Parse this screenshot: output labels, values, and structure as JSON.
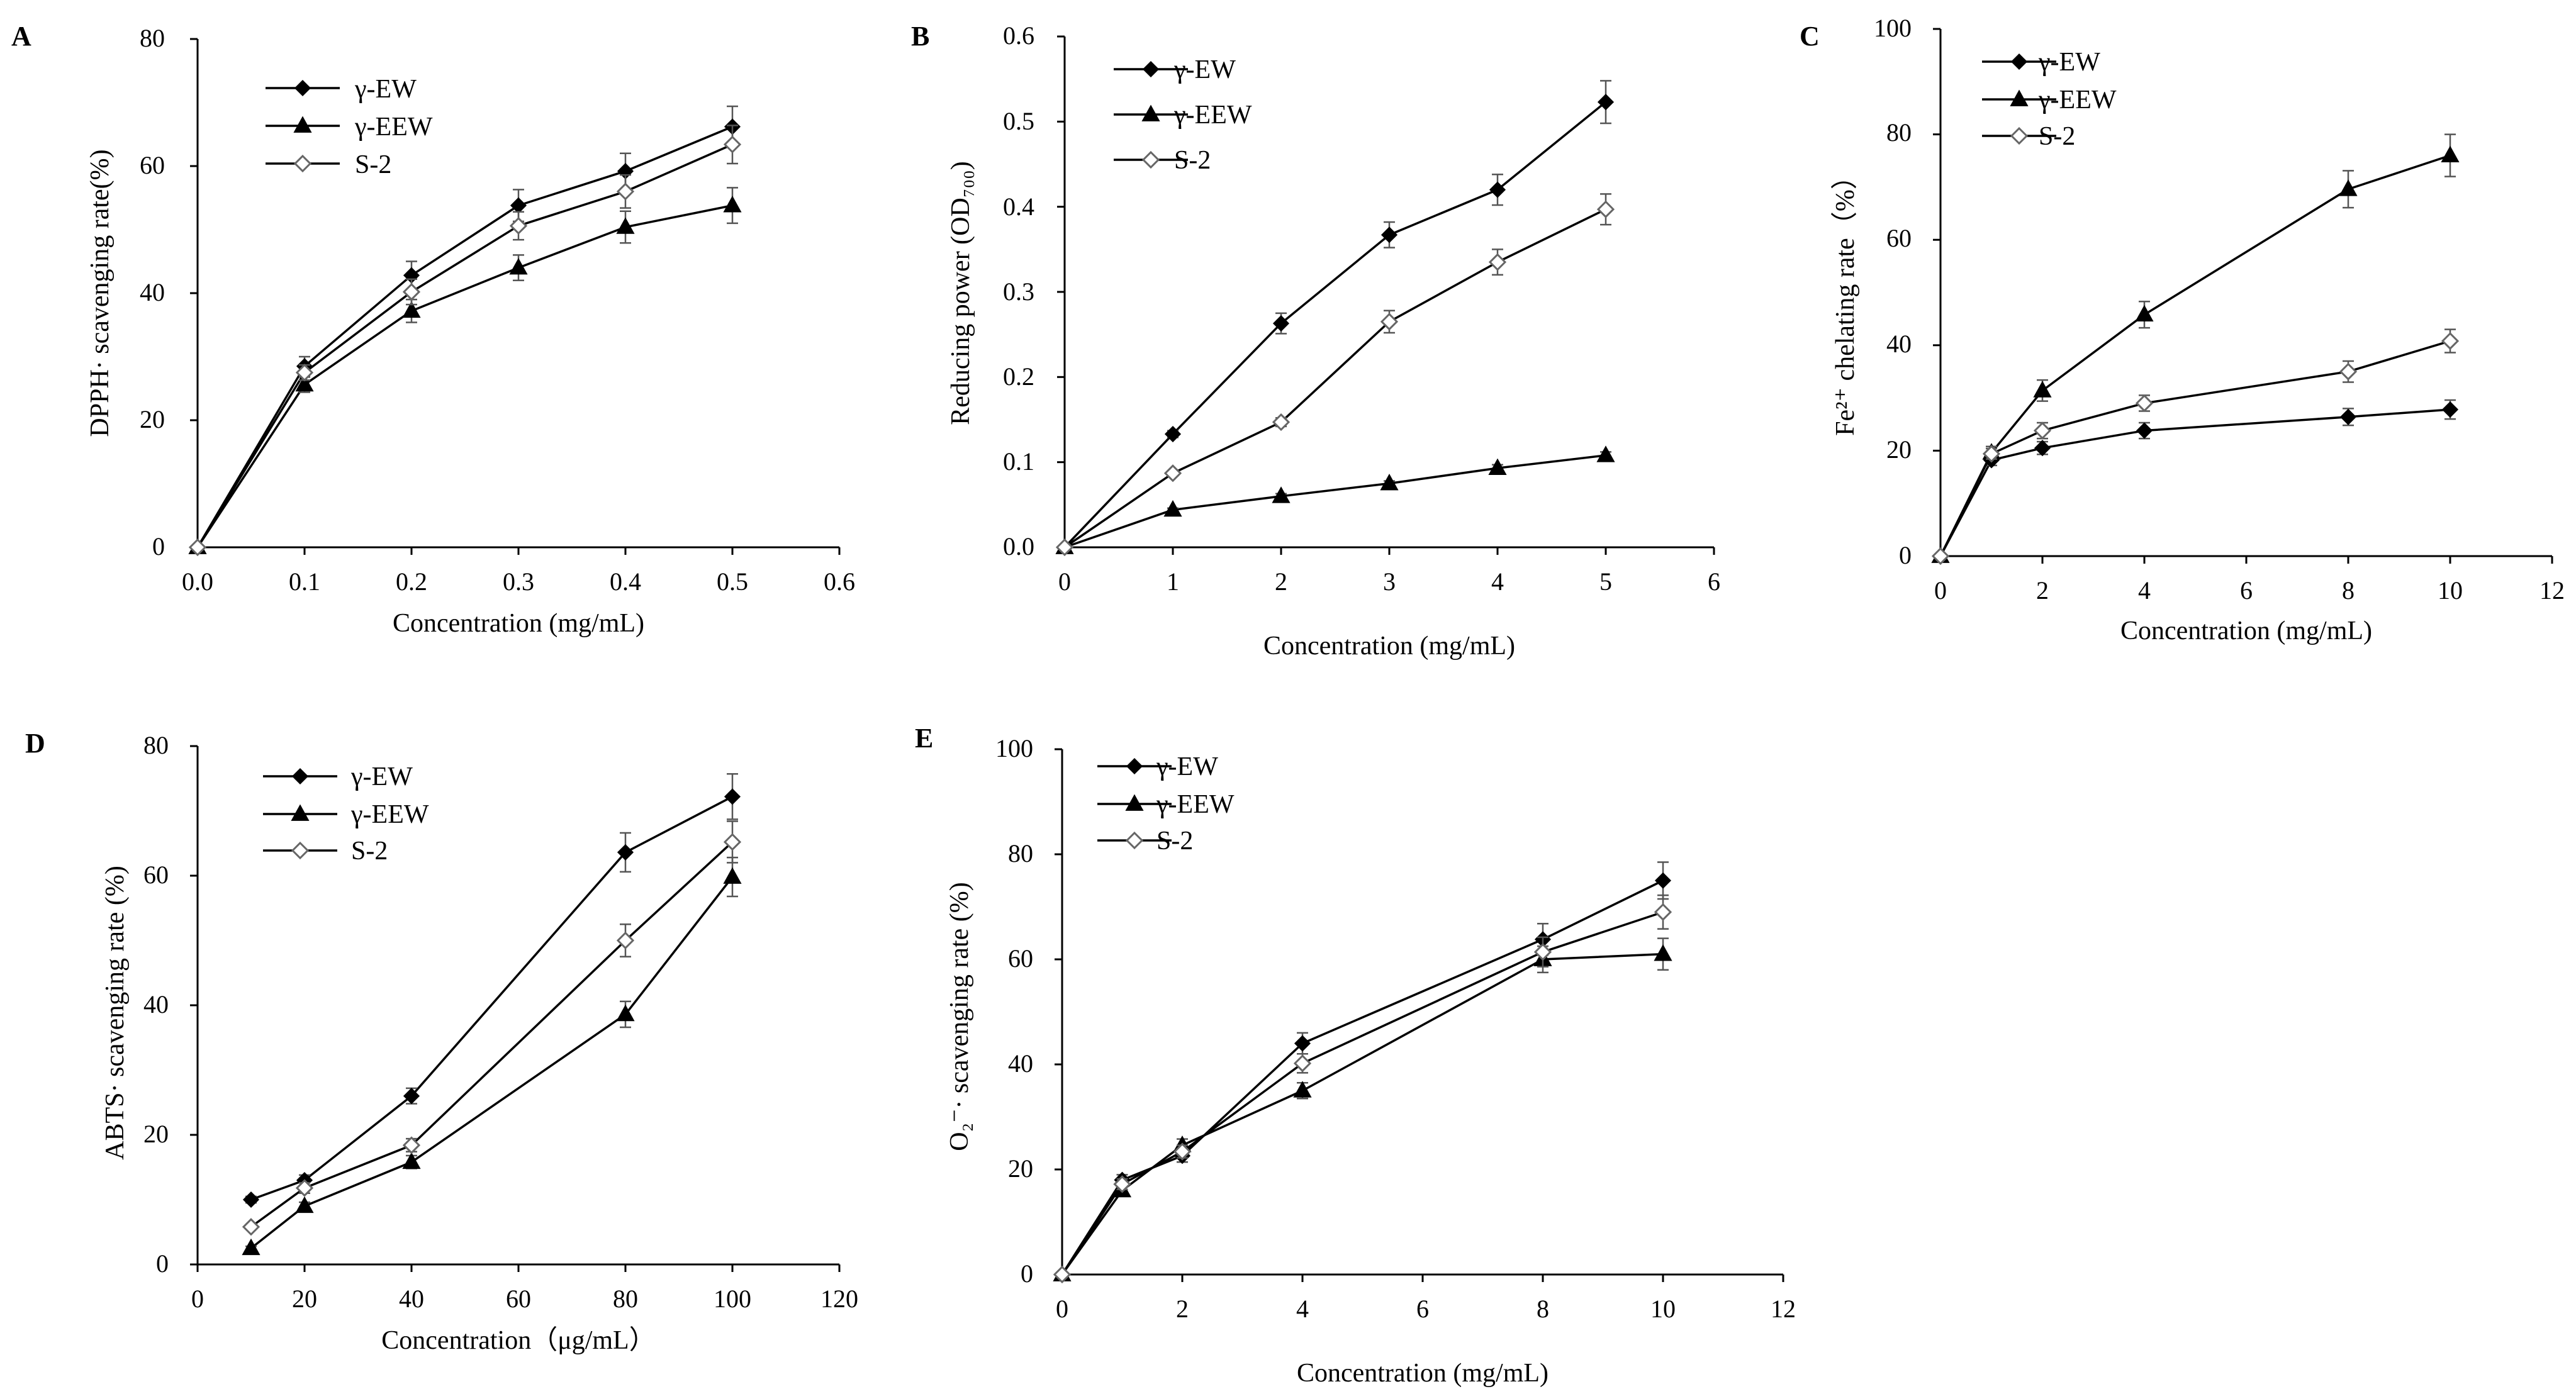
{
  "chart_data": [
    {
      "panel": "A",
      "type": "line",
      "xlabel": "Concentration (mg/mL)",
      "ylabel": "DPPH· scavenging rate(%)",
      "xlim": [
        0,
        0.6
      ],
      "xticks": [
        0,
        0.1,
        0.2,
        0.3,
        0.4,
        0.5,
        0.6
      ],
      "xtick_labels": [
        "0.0",
        "0.1",
        "0.2",
        "0.3",
        "0.4",
        "0.5",
        "0.6"
      ],
      "ylim": [
        0,
        80
      ],
      "yticks": [
        0,
        20,
        40,
        60,
        80
      ],
      "ytick_labels": [
        "0",
        "20",
        "40",
        "60",
        "80"
      ],
      "legend": "top-left",
      "series": [
        {
          "name": "γ-EW",
          "marker": "diamond",
          "x": [
            0,
            0.1,
            0.2,
            0.3,
            0.4,
            0.5
          ],
          "y": [
            0,
            28.5,
            42.8,
            53.8,
            59.2,
            66.2
          ],
          "err": [
            0,
            1.5,
            2.2,
            2.5,
            2.8,
            3.2
          ]
        },
        {
          "name": "γ-EEW",
          "marker": "triangle",
          "x": [
            0,
            0.1,
            0.2,
            0.3,
            0.4,
            0.5
          ],
          "y": [
            0,
            25.6,
            37.2,
            44.0,
            50.4,
            53.8
          ],
          "err": [
            0,
            1.2,
            1.8,
            2.0,
            2.5,
            2.8
          ]
        },
        {
          "name": "S-2",
          "marker": "open-diamond",
          "x": [
            0,
            0.1,
            0.2,
            0.3,
            0.4,
            0.5
          ],
          "y": [
            0,
            27.5,
            40.2,
            50.6,
            56.0,
            63.4
          ],
          "err": [
            0,
            1.2,
            2.0,
            2.2,
            2.6,
            3.0
          ]
        }
      ]
    },
    {
      "panel": "B",
      "type": "line",
      "xlabel": "Concentration (mg/mL)",
      "ylabel": "Reducing power (OD₇₀₀)",
      "xlim": [
        0,
        6
      ],
      "xticks": [
        0,
        1,
        2,
        3,
        4,
        5,
        6
      ],
      "xtick_labels": [
        "0",
        "1",
        "2",
        "3",
        "4",
        "5",
        "6"
      ],
      "ylim": [
        0,
        0.6
      ],
      "yticks": [
        0,
        0.1,
        0.2,
        0.3,
        0.4,
        0.5,
        0.6
      ],
      "ytick_labels": [
        "0.0",
        "0.1",
        "0.2",
        "0.3",
        "0.4",
        "0.5",
        "0.6"
      ],
      "legend": "top-left",
      "series": [
        {
          "name": "γ-EW",
          "marker": "diamond",
          "x": [
            0,
            1,
            2,
            3,
            4,
            5
          ],
          "y": [
            0,
            0.133,
            0.263,
            0.367,
            0.42,
            0.523
          ],
          "err": [
            0,
            0.004,
            0.012,
            0.015,
            0.018,
            0.025
          ]
        },
        {
          "name": "γ-EEW",
          "marker": "triangle",
          "x": [
            0,
            1,
            2,
            3,
            4,
            5
          ],
          "y": [
            0,
            0.044,
            0.06,
            0.075,
            0.093,
            0.108
          ],
          "err": [
            0,
            0.002,
            0.003,
            0.003,
            0.004,
            0.004
          ]
        },
        {
          "name": "S-2",
          "marker": "open-diamond",
          "x": [
            0,
            1,
            2,
            3,
            4,
            5
          ],
          "y": [
            0,
            0.087,
            0.147,
            0.265,
            0.335,
            0.397
          ],
          "err": [
            0,
            0.003,
            0.005,
            0.013,
            0.015,
            0.018
          ]
        }
      ]
    },
    {
      "panel": "C",
      "type": "line",
      "xlabel": "Concentration (mg/mL)",
      "ylabel": "Fe²⁺ chelating rate（%）",
      "xlim": [
        0,
        12
      ],
      "xticks": [
        0,
        2,
        4,
        6,
        8,
        10,
        12
      ],
      "xtick_labels": [
        "0",
        "2",
        "4",
        "6",
        "8",
        "10",
        "12"
      ],
      "ylim": [
        0,
        100
      ],
      "yticks": [
        0,
        20,
        40,
        60,
        80,
        100
      ],
      "ytick_labels": [
        "0",
        "20",
        "40",
        "60",
        "80",
        "100"
      ],
      "legend": "top-left",
      "series": [
        {
          "name": "γ-EW",
          "marker": "diamond",
          "x": [
            0,
            1,
            2,
            4,
            8,
            10
          ],
          "y": [
            0,
            18.2,
            20.5,
            23.8,
            26.4,
            27.8
          ],
          "err": [
            0,
            1.0,
            1.2,
            1.5,
            1.6,
            1.8
          ]
        },
        {
          "name": "γ-EEW",
          "marker": "triangle",
          "x": [
            0,
            1,
            2,
            4,
            8,
            10
          ],
          "y": [
            0,
            19.6,
            31.4,
            45.8,
            69.6,
            76.0
          ],
          "err": [
            0,
            1.2,
            2.0,
            2.5,
            3.5,
            4.0
          ]
        },
        {
          "name": "S-2",
          "marker": "open-diamond",
          "x": [
            0,
            1,
            2,
            4,
            8,
            10
          ],
          "y": [
            0,
            19.4,
            23.8,
            29.0,
            35.0,
            40.8
          ],
          "err": [
            0,
            1.0,
            1.5,
            1.5,
            2.0,
            2.2
          ]
        }
      ]
    },
    {
      "panel": "D",
      "type": "line",
      "xlabel": "Concentration（μg/mL）",
      "ylabel": "ABTS· scavenging rate (%)",
      "xlim": [
        0,
        120
      ],
      "xticks": [
        0,
        20,
        40,
        60,
        80,
        100,
        120
      ],
      "xtick_labels": [
        "0",
        "20",
        "40",
        "60",
        "80",
        "100",
        "120"
      ],
      "ylim": [
        0,
        80
      ],
      "yticks": [
        0,
        20,
        40,
        60,
        80
      ],
      "ytick_labels": [
        "0",
        "20",
        "40",
        "60",
        "80"
      ],
      "legend": "top-left",
      "series": [
        {
          "name": "γ-EW",
          "marker": "diamond",
          "x": [
            10,
            20,
            40,
            80,
            100
          ],
          "y": [
            10.0,
            13.0,
            26.0,
            63.6,
            72.2
          ],
          "err": [
            0.5,
            0.8,
            1.2,
            3.0,
            3.5
          ]
        },
        {
          "name": "γ-EEW",
          "marker": "triangle",
          "x": [
            10,
            20,
            40,
            80,
            100
          ],
          "y": [
            2.5,
            9.0,
            15.8,
            38.6,
            59.8
          ],
          "err": [
            0.3,
            0.6,
            1.0,
            2.0,
            3.0
          ]
        },
        {
          "name": "S-2",
          "marker": "open-diamond",
          "x": [
            10,
            20,
            40,
            80,
            100
          ],
          "y": [
            5.8,
            11.8,
            18.4,
            50.0,
            65.2
          ],
          "err": [
            0.4,
            0.8,
            1.0,
            2.5,
            3.2
          ]
        }
      ]
    },
    {
      "panel": "E",
      "type": "line",
      "xlabel": "Concentration (mg/mL)",
      "ylabel": "O₂⁻· scavenging rate (%)",
      "xlim": [
        0,
        12
      ],
      "xticks": [
        0,
        2,
        4,
        6,
        8,
        10,
        12
      ],
      "xtick_labels": [
        "0",
        "2",
        "4",
        "6",
        "8",
        "10",
        "12"
      ],
      "ylim": [
        0,
        100
      ],
      "yticks": [
        0,
        20,
        40,
        60,
        80,
        100
      ],
      "ytick_labels": [
        "0",
        "20",
        "40",
        "60",
        "80",
        "100"
      ],
      "legend": "top-left",
      "series": [
        {
          "name": "γ-EW",
          "marker": "diamond",
          "x": [
            0,
            1,
            2,
            4,
            8,
            10
          ],
          "y": [
            0,
            18.0,
            22.6,
            44.0,
            63.8,
            75.0
          ],
          "err": [
            0,
            1.0,
            1.2,
            2.0,
            3.0,
            3.5
          ]
        },
        {
          "name": "γ-EEW",
          "marker": "triangle",
          "x": [
            0,
            1,
            2,
            4,
            8,
            10
          ],
          "y": [
            0,
            16.0,
            24.6,
            35.0,
            60.0,
            61.0
          ],
          "err": [
            0,
            1.0,
            1.2,
            1.5,
            2.5,
            3.0
          ]
        },
        {
          "name": "S-2",
          "marker": "open-diamond",
          "x": [
            0,
            1,
            2,
            4,
            8,
            10
          ],
          "y": [
            0,
            17.2,
            23.4,
            40.2,
            61.4,
            69.0
          ],
          "err": [
            0,
            1.0,
            1.2,
            1.8,
            2.8,
            3.2
          ]
        }
      ]
    }
  ]
}
